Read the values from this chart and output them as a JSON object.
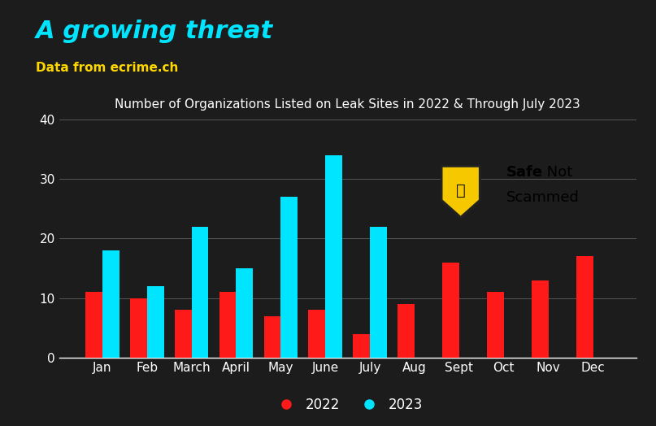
{
  "title": "Number of Organizations Listed on Leak Sites in 2022 & Through July 2023",
  "main_title": "A growing threat",
  "subtitle": "Data from ecrime.ch",
  "background_color": "#1c1c1c",
  "plot_bg_color": "#1c1c1c",
  "title_color": "#ffffff",
  "main_title_color": "#00e5ff",
  "subtitle_color": "#ffd700",
  "categories": [
    "Jan",
    "Feb",
    "March",
    "April",
    "May",
    "June",
    "July",
    "Aug",
    "Sept",
    "Oct",
    "Nov",
    "Dec"
  ],
  "values_2022": [
    11,
    10,
    8,
    11,
    7,
    8,
    4,
    9,
    16,
    11,
    13,
    17
  ],
  "values_2023": [
    18,
    12,
    22,
    15,
    27,
    34,
    22,
    null,
    null,
    null,
    null,
    null
  ],
  "color_2022": "#ff1a1a",
  "color_2023": "#00e5ff",
  "ylim": [
    0,
    40
  ],
  "yticks": [
    0,
    10,
    20,
    30,
    40
  ],
  "grid_color": "#555555",
  "tick_color": "#ffffff",
  "legend_label_2022": "2022",
  "legend_label_2023": "2023",
  "bar_width": 0.38,
  "logo_bg": "#add8e6",
  "logo_shield_color": "#f5c800",
  "logo_text_safe_color": "#000000",
  "logo_text_rest_color": "#000000"
}
